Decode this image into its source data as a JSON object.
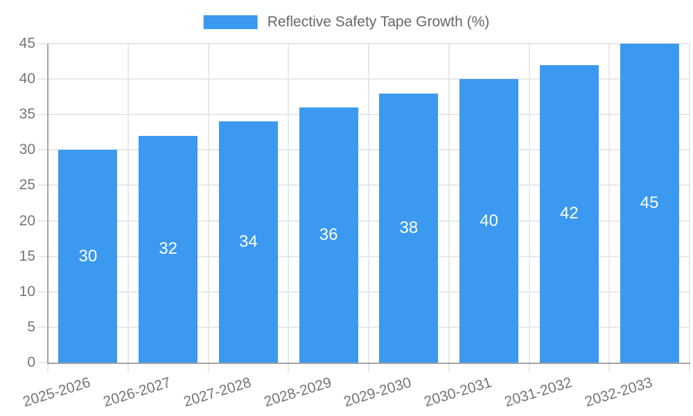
{
  "chart_data": {
    "type": "bar",
    "title": "Reflective Safety Tape Growth (%)",
    "categories": [
      "2025-2026",
      "2026-2027",
      "2027-2028",
      "2028-2029",
      "2029-2030",
      "2030-2031",
      "2031-2032",
      "2032-2033"
    ],
    "values": [
      30,
      32,
      34,
      36,
      38,
      40,
      42,
      45
    ],
    "bar_value_labels": [
      "30",
      "32",
      "34",
      "36",
      "38",
      "40",
      "42",
      "45"
    ],
    "xlabel": "",
    "ylabel": "",
    "ylim": [
      0,
      45
    ],
    "ytick_step": 5,
    "ytick_labels": [
      "0",
      "5",
      "10",
      "15",
      "20",
      "25",
      "30",
      "35",
      "40",
      "45"
    ],
    "grid": true,
    "legend_position": "top",
    "x_label_rotation_deg": -17
  },
  "colors": {
    "bar": "#3B99F0",
    "grid": "#e8e8e8",
    "axis": "#a3a3a3",
    "tick_text": "#757575",
    "legend_text": "#666666",
    "bar_label": "#ffffff",
    "background": "#ffffff"
  }
}
